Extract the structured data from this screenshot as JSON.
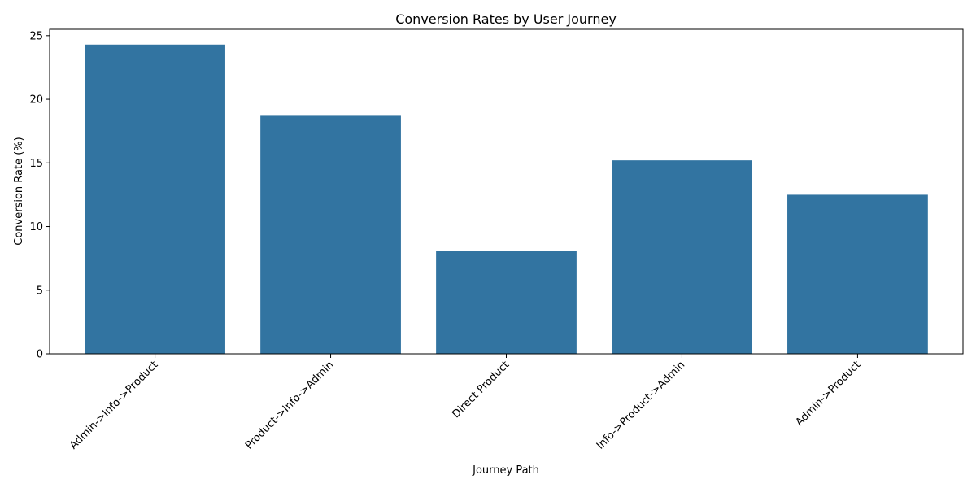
{
  "chart_data": {
    "type": "bar",
    "title": "Conversion Rates by User Journey",
    "xlabel": "Journey Path",
    "ylabel": "Conversion Rate (%)",
    "categories": [
      "Admin->Info->Product",
      "Product->Info->Admin",
      "Direct Product",
      "Info->Product->Admin",
      "Admin->Product"
    ],
    "values": [
      24.3,
      18.7,
      8.1,
      15.2,
      12.5
    ],
    "ylim": [
      0,
      25.5
    ],
    "yticks": [
      0,
      5,
      10,
      15,
      20,
      25
    ],
    "grid": false,
    "bar_color": "#3274a1",
    "xtick_rotation_deg": 45
  }
}
